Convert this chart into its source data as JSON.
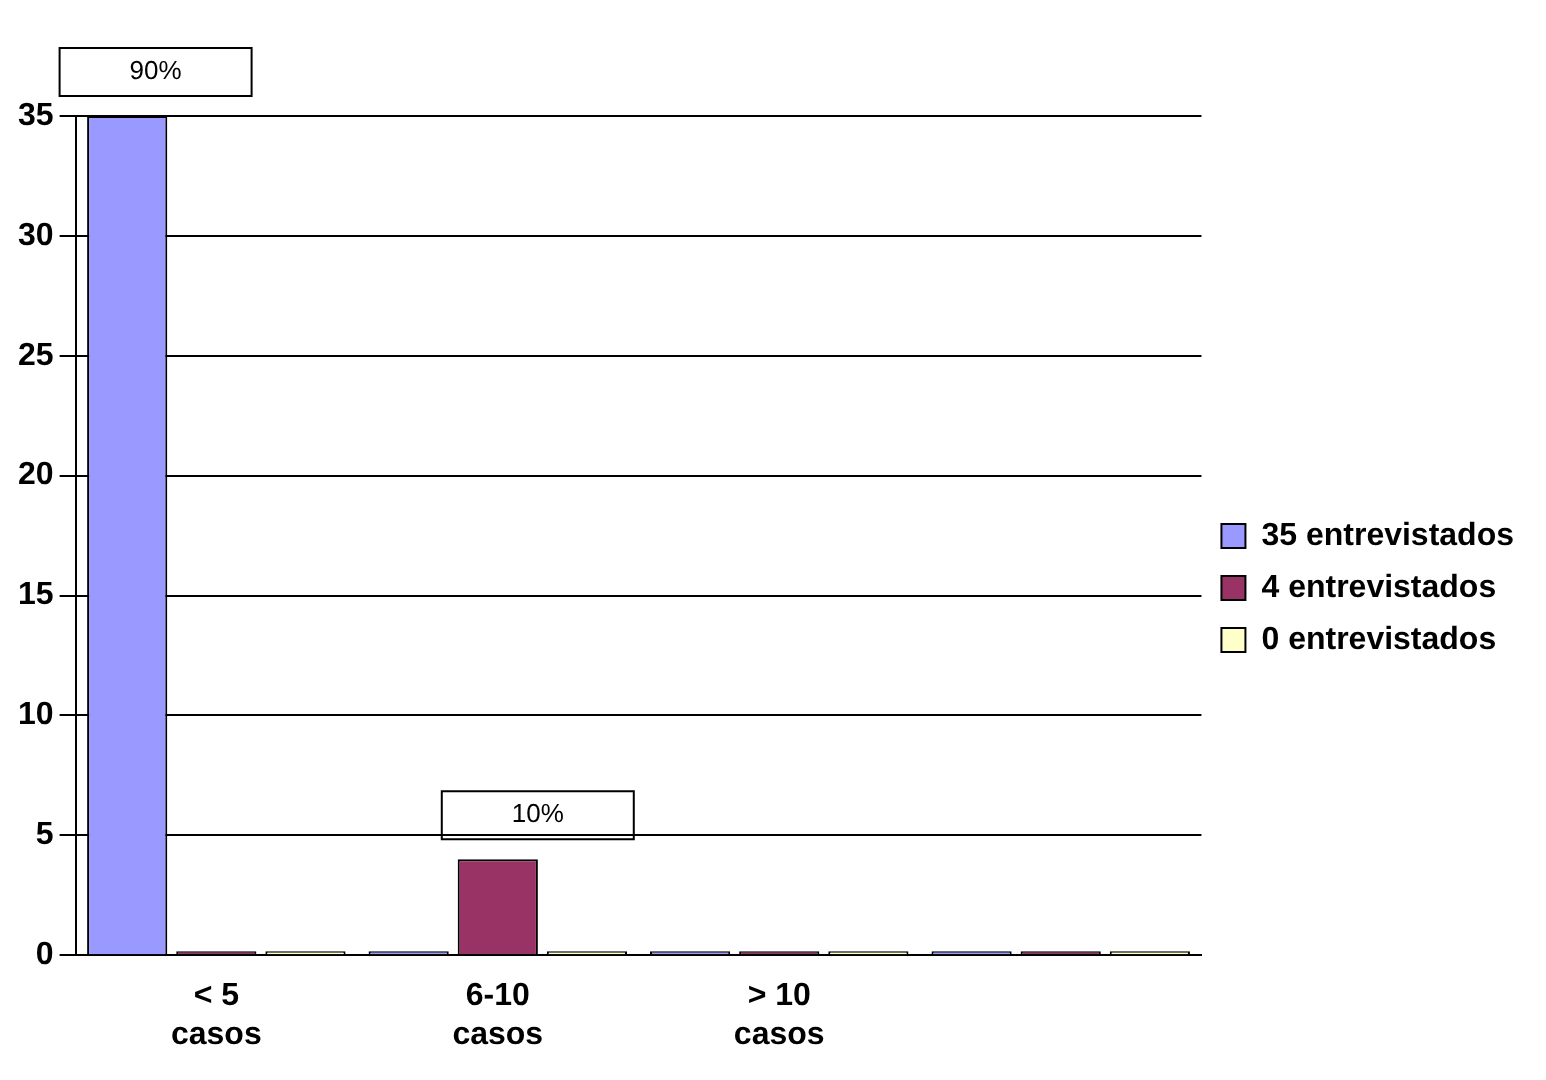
{
  "chart_data": {
    "type": "bar",
    "categories": [
      "< 5 casos",
      "6-10 casos",
      "> 10 casos",
      null
    ],
    "series": [
      {
        "name": "35 entrevistados",
        "color": "#9999ff",
        "values": [
          35,
          0,
          0,
          0
        ]
      },
      {
        "name": "4 entrevistados",
        "color": "#993366",
        "values": [
          0,
          4,
          0,
          0
        ]
      },
      {
        "name": "0 entrevistados",
        "color": "#ffffcc",
        "values": [
          0,
          0,
          0,
          0
        ]
      }
    ],
    "annotations": [
      "90%",
      {
        "text": "10%",
        "x": "6-10 casos",
        "y": 4
      }
    ],
    "ylim": [
      0,
      35
    ],
    "yticks": [
      0,
      5,
      10,
      15,
      20,
      25,
      30,
      35
    ],
    "grid": "y",
    "legend": "right"
  }
}
